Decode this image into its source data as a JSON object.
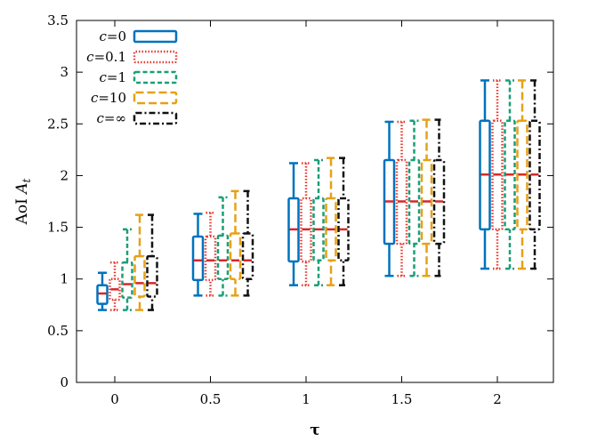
{
  "chart_data": {
    "type": "boxplot",
    "xlabel": "τ",
    "ylabel_prefix": "AoI ",
    "ylabel_var": "A",
    "ylabel_sub": "t",
    "ylim": [
      0,
      3.5
    ],
    "y_ticks": [
      0,
      0.5,
      1,
      1.5,
      2,
      2.5,
      3,
      3.5
    ],
    "y_tick_labels": [
      "0",
      "0.5",
      "1",
      "1.5",
      "2",
      "2.5",
      "3",
      "3.5"
    ],
    "categories": [
      "0",
      "0.5",
      "1",
      "1.5",
      "2"
    ],
    "median_color": "#d62728",
    "series": [
      {
        "name": "c=0",
        "var": "c",
        "value": "=0",
        "color": "#0072bd",
        "dash": "",
        "boxes": [
          {
            "min": 0.7,
            "q1": 0.76,
            "median": 0.86,
            "q3": 0.94,
            "max": 1.06
          },
          {
            "min": 0.84,
            "q1": 0.99,
            "median": 1.18,
            "q3": 1.41,
            "max": 1.63
          },
          {
            "min": 0.94,
            "q1": 1.17,
            "median": 1.48,
            "q3": 1.78,
            "max": 2.12
          },
          {
            "min": 1.03,
            "q1": 1.34,
            "median": 1.75,
            "q3": 2.15,
            "max": 2.52
          },
          {
            "min": 1.1,
            "q1": 1.48,
            "median": 2.01,
            "q3": 2.53,
            "max": 2.92
          }
        ]
      },
      {
        "name": "c=0.1",
        "var": "c",
        "value": "=0.1",
        "color": "#e8352b",
        "dash": "1.5,2",
        "boxes": [
          {
            "min": 0.7,
            "q1": 0.8,
            "median": 0.9,
            "q3": 1.0,
            "max": 1.16
          },
          {
            "min": 0.84,
            "q1": 0.99,
            "median": 1.18,
            "q3": 1.41,
            "max": 1.64
          },
          {
            "min": 0.94,
            "q1": 1.17,
            "median": 1.48,
            "q3": 1.78,
            "max": 2.12
          },
          {
            "min": 1.03,
            "q1": 1.34,
            "median": 1.75,
            "q3": 2.15,
            "max": 2.52
          },
          {
            "min": 1.1,
            "q1": 1.48,
            "median": 2.01,
            "q3": 2.53,
            "max": 2.92
          }
        ]
      },
      {
        "name": "c=1",
        "var": "c",
        "value": "=1",
        "color": "#1a9e77",
        "dash": "5,3",
        "boxes": [
          {
            "min": 0.7,
            "q1": 0.82,
            "median": 0.95,
            "q3": 1.16,
            "max": 1.48
          },
          {
            "min": 0.84,
            "q1": 1.0,
            "median": 1.18,
            "q3": 1.42,
            "max": 1.79
          },
          {
            "min": 0.94,
            "q1": 1.18,
            "median": 1.48,
            "q3": 1.78,
            "max": 2.15
          },
          {
            "min": 1.03,
            "q1": 1.34,
            "median": 1.75,
            "q3": 2.15,
            "max": 2.53
          },
          {
            "min": 1.1,
            "q1": 1.48,
            "median": 2.01,
            "q3": 2.53,
            "max": 2.92
          }
        ]
      },
      {
        "name": "c=10",
        "var": "c",
        "value": "=10",
        "color": "#e6a117",
        "dash": "9,4",
        "boxes": [
          {
            "min": 0.7,
            "q1": 0.83,
            "median": 0.96,
            "q3": 1.22,
            "max": 1.62
          },
          {
            "min": 0.84,
            "q1": 1.0,
            "median": 1.18,
            "q3": 1.44,
            "max": 1.85
          },
          {
            "min": 0.94,
            "q1": 1.18,
            "median": 1.48,
            "q3": 1.78,
            "max": 2.17
          },
          {
            "min": 1.03,
            "q1": 1.34,
            "median": 1.75,
            "q3": 2.15,
            "max": 2.54
          },
          {
            "min": 1.1,
            "q1": 1.48,
            "median": 2.01,
            "q3": 2.53,
            "max": 2.92
          }
        ]
      },
      {
        "name": "c=∞",
        "var": "c",
        "value": "=∞",
        "color": "#111111",
        "dash": "7,3,2,3",
        "boxes": [
          {
            "min": 0.7,
            "q1": 0.83,
            "median": 0.96,
            "q3": 1.22,
            "max": 1.62
          },
          {
            "min": 0.84,
            "q1": 1.0,
            "median": 1.18,
            "q3": 1.44,
            "max": 1.85
          },
          {
            "min": 0.94,
            "q1": 1.18,
            "median": 1.48,
            "q3": 1.78,
            "max": 2.17
          },
          {
            "min": 1.03,
            "q1": 1.34,
            "median": 1.75,
            "q3": 2.15,
            "max": 2.54
          },
          {
            "min": 1.1,
            "q1": 1.48,
            "median": 2.01,
            "q3": 2.53,
            "max": 2.92
          }
        ]
      }
    ]
  }
}
